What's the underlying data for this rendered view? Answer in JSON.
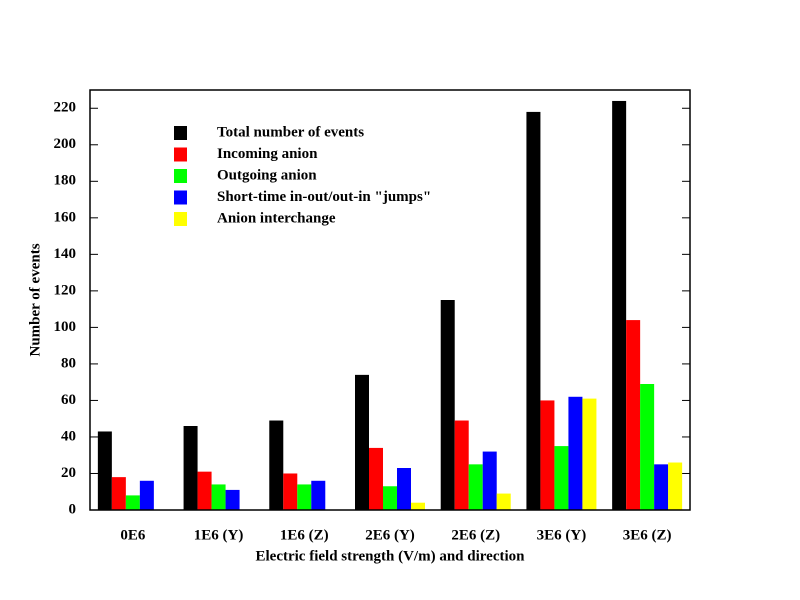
{
  "chart_data": {
    "type": "bar",
    "x_label": "Electric field strength (V/m) and direction",
    "y_label": "Number of events",
    "categories": [
      "0E6",
      "1E6 (Y)",
      "1E6 (Z)",
      "2E6 (Y)",
      "2E6 (Z)",
      "3E6 (Y)",
      "3E6 (Z)"
    ],
    "series": [
      {
        "name": "Total number of events",
        "color": "#000000",
        "values": [
          43,
          46,
          49,
          74,
          115,
          218,
          224
        ]
      },
      {
        "name": "Incoming anion",
        "color": "#ff0000",
        "values": [
          18,
          21,
          20,
          34,
          49,
          60,
          104
        ]
      },
      {
        "name": "Outgoing anion",
        "color": "#00ff00",
        "values": [
          8,
          14,
          14,
          13,
          25,
          35,
          69
        ]
      },
      {
        "name": "Short-time in-out/out-in \"jumps\"",
        "color": "#0000ff",
        "values": [
          16,
          11,
          16,
          23,
          32,
          62,
          25
        ]
      },
      {
        "name": "Anion interchange",
        "color": "#ffff00",
        "values": [
          0,
          0,
          0,
          4,
          9,
          61,
          26
        ]
      }
    ],
    "ylim": [
      0,
      230
    ],
    "yticks": [
      0,
      20,
      40,
      60,
      80,
      100,
      120,
      140,
      160,
      180,
      200,
      220
    ],
    "legend": "upper-left"
  }
}
